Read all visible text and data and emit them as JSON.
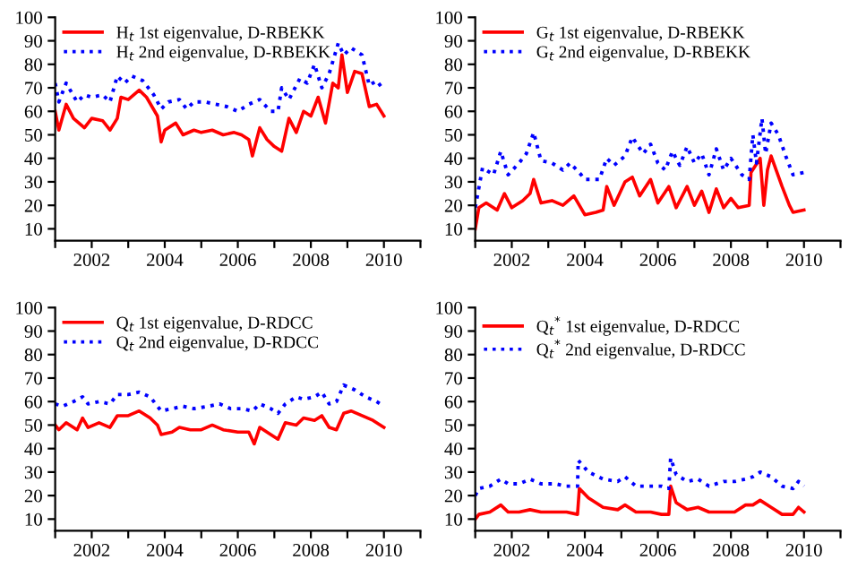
{
  "chart_data": [
    {
      "type": "line",
      "legend": "top left",
      "grid": false,
      "xlim": [
        2001,
        2011
      ],
      "ylim": [
        5,
        100
      ],
      "xticks": [
        {
          "value": 2001,
          "label": null
        },
        2002,
        {
          "value": 2003,
          "label": null
        },
        2004,
        {
          "value": 2005,
          "label": null
        },
        2006,
        {
          "value": 2007,
          "label": null
        },
        2008,
        {
          "value": 2009,
          "label": null
        },
        2010,
        {
          "value": 2011,
          "label": null
        }
      ],
      "yticks": [
        10,
        20,
        30,
        40,
        50,
        60,
        70,
        80,
        90,
        100
      ],
      "series": [
        {
          "name": "H$_{t}$ 1st eigenvalue, D-RBEKK",
          "color": "#ff0000",
          "line_style": "solid",
          "x": [
            2001.0,
            2001.1,
            2001.3,
            2001.5,
            2001.8,
            2002.0,
            2002.3,
            2002.5,
            2002.7,
            2002.8,
            2003.0,
            2003.3,
            2003.5,
            2003.8,
            2003.9,
            2004.0,
            2004.3,
            2004.5,
            2004.8,
            2005.0,
            2005.3,
            2005.6,
            2005.9,
            2006.1,
            2006.3,
            2006.4,
            2006.6,
            2006.8,
            2007.0,
            2007.2,
            2007.4,
            2007.6,
            2007.8,
            2008.0,
            2008.2,
            2008.4,
            2008.6,
            2008.75,
            2008.85,
            2009.0,
            2009.2,
            2009.4,
            2009.6,
            2009.8,
            2010.0
          ],
          "values": [
            60,
            52,
            63,
            57,
            53,
            57,
            56,
            52,
            57,
            66,
            65,
            69,
            66,
            58,
            47,
            52,
            55,
            50,
            52,
            51,
            52,
            50,
            51,
            50,
            48,
            41,
            53,
            48,
            45,
            43,
            57,
            51,
            60,
            58,
            66,
            55,
            72,
            70,
            84,
            68,
            77,
            76,
            62,
            63,
            58
          ]
        },
        {
          "name": "H$_{t}$ 2nd eigenvalue, D-RBEKK",
          "color": "#0000ff",
          "line_style": "dotted",
          "x": [
            2001.0,
            2001.1,
            2001.3,
            2001.6,
            2001.8,
            2002.0,
            2002.3,
            2002.5,
            2002.7,
            2002.9,
            2003.1,
            2003.4,
            2003.7,
            2003.9,
            2004.1,
            2004.4,
            2004.6,
            2004.8,
            2005.1,
            2005.4,
            2005.7,
            2006.0,
            2006.3,
            2006.6,
            2006.9,
            2007.1,
            2007.2,
            2007.4,
            2007.7,
            2007.9,
            2008.1,
            2008.3,
            2008.5,
            2008.75,
            2008.9,
            2009.1,
            2009.4,
            2009.6,
            2009.8,
            2010.0
          ],
          "values": [
            72,
            64,
            72,
            64,
            67,
            66,
            67,
            64,
            75,
            72,
            75,
            73,
            67,
            61,
            64,
            65,
            61,
            64,
            64,
            63,
            62,
            60,
            63,
            65,
            60,
            60,
            70,
            65,
            74,
            72,
            80,
            70,
            76,
            89,
            84,
            87,
            84,
            71,
            73,
            69
          ]
        }
      ]
    },
    {
      "type": "line",
      "legend": "top left",
      "grid": false,
      "xlim": [
        2001,
        2011
      ],
      "ylim": [
        5,
        100
      ],
      "xticks": [
        {
          "value": 2001,
          "label": null
        },
        2002,
        {
          "value": 2003,
          "label": null
        },
        2004,
        {
          "value": 2005,
          "label": null
        },
        2006,
        {
          "value": 2007,
          "label": null
        },
        2008,
        {
          "value": 2009,
          "label": null
        },
        2010,
        {
          "value": 2011,
          "label": null
        }
      ],
      "yticks": [
        10,
        20,
        30,
        40,
        50,
        60,
        70,
        80,
        90,
        100
      ],
      "series": [
        {
          "name": "G$_{t}$ 1st eigenvalue, D-RBEKK",
          "color": "#ff0000",
          "line_style": "solid",
          "x": [
            2001.0,
            2001.1,
            2001.3,
            2001.6,
            2001.8,
            2002.0,
            2002.3,
            2002.5,
            2002.6,
            2002.8,
            2003.1,
            2003.4,
            2003.7,
            2004.0,
            2004.3,
            2004.5,
            2004.6,
            2004.8,
            2005.1,
            2005.3,
            2005.5,
            2005.8,
            2006.0,
            2006.3,
            2006.5,
            2006.8,
            2007.0,
            2007.2,
            2007.4,
            2007.6,
            2007.8,
            2008.0,
            2008.2,
            2008.5,
            2008.55,
            2008.8,
            2008.9,
            2009.0,
            2009.1,
            2009.4,
            2009.6,
            2009.7,
            2010.0
          ],
          "values": [
            10,
            19,
            21,
            18,
            25,
            19,
            22,
            25,
            31,
            21,
            22,
            20,
            24,
            16,
            17,
            18,
            28,
            20,
            30,
            32,
            24,
            31,
            21,
            28,
            19,
            28,
            20,
            26,
            17,
            27,
            19,
            23,
            19,
            20,
            34,
            40,
            20,
            35,
            41,
            28,
            20,
            17,
            18
          ]
        },
        {
          "name": "G$_{t}$ 2nd eigenvalue, D-RBEKK",
          "color": "#0000ff",
          "line_style": "dotted",
          "x": [
            2001.0,
            2001.2,
            2001.5,
            2001.7,
            2001.9,
            2002.2,
            2002.4,
            2002.6,
            2002.8,
            2003.1,
            2003.4,
            2003.6,
            2003.9,
            2004.0,
            2004.4,
            2004.6,
            2004.8,
            2005.1,
            2005.3,
            2005.6,
            2005.8,
            2006.0,
            2006.2,
            2006.4,
            2006.6,
            2006.8,
            2007.0,
            2007.2,
            2007.4,
            2007.6,
            2007.8,
            2008.0,
            2008.3,
            2008.5,
            2008.6,
            2008.7,
            2008.85,
            2008.95,
            2009.1,
            2009.3,
            2009.5,
            2009.7,
            2010.0
          ],
          "values": [
            19,
            36,
            33,
            43,
            33,
            38,
            42,
            51,
            39,
            38,
            35,
            38,
            33,
            31,
            31,
            40,
            37,
            41,
            49,
            42,
            46,
            38,
            35,
            43,
            37,
            45,
            38,
            42,
            33,
            44,
            35,
            40,
            33,
            31,
            50,
            38,
            57,
            42,
            55,
            50,
            41,
            33,
            34
          ]
        }
      ]
    },
    {
      "type": "line",
      "legend": "top left",
      "grid": false,
      "xlim": [
        2001,
        2011
      ],
      "ylim": [
        5,
        100
      ],
      "xticks": [
        {
          "value": 2001,
          "label": null
        },
        2002,
        {
          "value": 2003,
          "label": null
        },
        2004,
        {
          "value": 2005,
          "label": null
        },
        2006,
        {
          "value": 2007,
          "label": null
        },
        2008,
        {
          "value": 2009,
          "label": null
        },
        2010,
        {
          "value": 2011,
          "label": null
        }
      ],
      "yticks": [
        10,
        20,
        30,
        40,
        50,
        60,
        70,
        80,
        90,
        100
      ],
      "series": [
        {
          "name": "Q$_{t}$ 1st eigenvalue, D-RDCC",
          "color": "#ff0000",
          "line_style": "solid",
          "x": [
            2001.0,
            2001.1,
            2001.3,
            2001.6,
            2001.75,
            2001.9,
            2002.2,
            2002.5,
            2002.7,
            2003.0,
            2003.3,
            2003.6,
            2003.8,
            2003.9,
            2004.2,
            2004.4,
            2004.7,
            2005.0,
            2005.3,
            2005.6,
            2006.0,
            2006.3,
            2006.45,
            2006.6,
            2006.9,
            2007.1,
            2007.3,
            2007.6,
            2007.8,
            2008.1,
            2008.3,
            2008.5,
            2008.7,
            2008.9,
            2009.1,
            2009.4,
            2009.7,
            2010.0
          ],
          "values": [
            50,
            48,
            51,
            48,
            53,
            49,
            51,
            49,
            54,
            54,
            56,
            53,
            50,
            46,
            47,
            49,
            48,
            48,
            50,
            48,
            47,
            47,
            42,
            49,
            46,
            44,
            51,
            50,
            53,
            52,
            54,
            49,
            48,
            55,
            56,
            54,
            52,
            49
          ]
        },
        {
          "name": "Q$_{t}$ 2nd eigenvalue, D-RDCC",
          "color": "#0000ff",
          "line_style": "dotted",
          "x": [
            2001.0,
            2001.2,
            2001.5,
            2001.75,
            2001.9,
            2002.2,
            2002.5,
            2002.7,
            2003.0,
            2003.3,
            2003.6,
            2003.9,
            2004.2,
            2004.5,
            2004.8,
            2005.2,
            2005.5,
            2005.8,
            2006.1,
            2006.4,
            2006.6,
            2006.9,
            2007.1,
            2007.3,
            2007.6,
            2007.8,
            2008.1,
            2008.3,
            2008.5,
            2008.7,
            2008.9,
            2009.2,
            2009.5,
            2009.8,
            2010.0
          ],
          "values": [
            59,
            58,
            60,
            62,
            59,
            60,
            59,
            63,
            63,
            64,
            62,
            56,
            57,
            58,
            57,
            58,
            59,
            57,
            57,
            56,
            59,
            57,
            55,
            59,
            62,
            61,
            62,
            64,
            59,
            60,
            67,
            65,
            62,
            60,
            58
          ]
        }
      ]
    },
    {
      "type": "line",
      "legend": "top left",
      "grid": false,
      "xlim": [
        2001,
        2011
      ],
      "ylim": [
        5,
        100
      ],
      "xticks": [
        {
          "value": 2001,
          "label": null
        },
        2002,
        {
          "value": 2003,
          "label": null
        },
        2004,
        {
          "value": 2005,
          "label": null
        },
        2006,
        {
          "value": 2007,
          "label": null
        },
        2008,
        {
          "value": 2009,
          "label": null
        },
        2010,
        {
          "value": 2011,
          "label": null
        }
      ],
      "yticks": [
        10,
        20,
        30,
        40,
        50,
        60,
        70,
        80,
        90,
        100
      ],
      "series": [
        {
          "name": "Q$_{t}$$^{*}$ 1st eigenvalue, D-RDCC",
          "color": "#ff0000",
          "line_style": "solid",
          "x": [
            2001.0,
            2001.1,
            2001.4,
            2001.7,
            2001.9,
            2002.2,
            2002.5,
            2002.8,
            2003.2,
            2003.5,
            2003.8,
            2003.85,
            2004.1,
            2004.5,
            2004.9,
            2005.1,
            2005.4,
            2005.8,
            2006.1,
            2006.3,
            2006.35,
            2006.5,
            2006.8,
            2007.1,
            2007.4,
            2007.8,
            2008.1,
            2008.4,
            2008.6,
            2008.8,
            2009.1,
            2009.4,
            2009.7,
            2009.85,
            2010.0
          ],
          "values": [
            10,
            12,
            13,
            16,
            13,
            13,
            14,
            13,
            13,
            13,
            12,
            23,
            19,
            15,
            14,
            16,
            13,
            13,
            12,
            12,
            24,
            17,
            14,
            15,
            13,
            13,
            13,
            16,
            16,
            18,
            15,
            12,
            12,
            15,
            13
          ]
        },
        {
          "name": "Q$_{t}$$^{*}$ 2nd eigenvalue, D-RDCC",
          "color": "#0000ff",
          "line_style": "dotted",
          "x": [
            2001.0,
            2001.1,
            2001.4,
            2001.7,
            2001.9,
            2002.2,
            2002.5,
            2002.8,
            2003.2,
            2003.5,
            2003.8,
            2003.82,
            2004.1,
            2004.5,
            2004.9,
            2005.1,
            2005.4,
            2005.8,
            2006.1,
            2006.3,
            2006.35,
            2006.5,
            2006.8,
            2007.1,
            2007.4,
            2007.8,
            2008.1,
            2008.4,
            2008.6,
            2008.8,
            2009.1,
            2009.4,
            2009.7,
            2009.85,
            2010.0
          ],
          "values": [
            20,
            23,
            24,
            27,
            25,
            25,
            27,
            25,
            25,
            24,
            24,
            35,
            30,
            27,
            26,
            28,
            24,
            24,
            24,
            23,
            36,
            29,
            26,
            27,
            24,
            26,
            26,
            27,
            28,
            30,
            28,
            24,
            23,
            26,
            24
          ]
        }
      ]
    }
  ]
}
